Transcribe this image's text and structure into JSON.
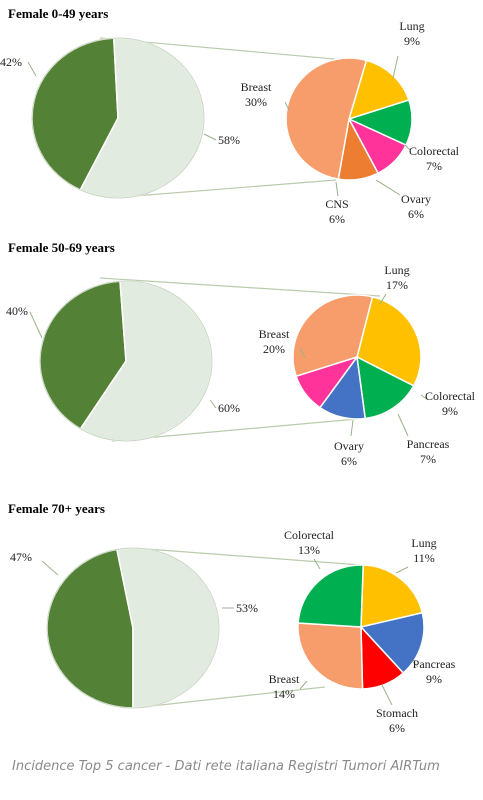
{
  "chart_data": [
    {
      "type": "pie",
      "title": "Female 0-49 years",
      "main_pie": {
        "slices": [
          {
            "label": "42%",
            "value": 42,
            "color": "#538135"
          },
          {
            "label": "58%",
            "value": 58,
            "color": "#e2ebe0"
          }
        ]
      },
      "detail_pie": {
        "slices": [
          {
            "name": "Lung",
            "value": 9,
            "label": "9%",
            "color": "#ffc000"
          },
          {
            "name": "Colorectal",
            "value": 7,
            "label": "7%",
            "color": "#00b050"
          },
          {
            "name": "Ovary",
            "value": 6,
            "label": "6%",
            "color": "#ff3399"
          },
          {
            "name": "CNS",
            "value": 6,
            "label": "6%",
            "color": "#ed7d31"
          },
          {
            "name": "Breast",
            "value": 30,
            "label": "30%",
            "color": "#f79c6b"
          }
        ]
      }
    },
    {
      "type": "pie",
      "title": "Female 50-69 years",
      "main_pie": {
        "slices": [
          {
            "label": "40%",
            "value": 40,
            "color": "#538135"
          },
          {
            "label": "60%",
            "value": 60,
            "color": "#e2ebe0"
          }
        ]
      },
      "detail_pie": {
        "slices": [
          {
            "name": "Lung",
            "value": 17,
            "label": "17%",
            "color": "#ffc000"
          },
          {
            "name": "Colorectal",
            "value": 9,
            "label": "9%",
            "color": "#00b050"
          },
          {
            "name": "Pancreas",
            "value": 7,
            "label": "7%",
            "color": "#4472c4"
          },
          {
            "name": "Ovary",
            "value": 6,
            "label": "6%",
            "color": "#ff3399"
          },
          {
            "name": "Breast",
            "value": 20,
            "label": "20%",
            "color": "#f79c6b"
          }
        ]
      }
    },
    {
      "type": "pie",
      "title": "Female 70+ years",
      "main_pie": {
        "slices": [
          {
            "label": "47%",
            "value": 47,
            "color": "#538135"
          },
          {
            "label": "53%",
            "value": 53,
            "color": "#e2ebe0"
          }
        ]
      },
      "detail_pie": {
        "slices": [
          {
            "name": "Lung",
            "value": 11,
            "label": "11%",
            "color": "#ffc000"
          },
          {
            "name": "Pancreas",
            "value": 9,
            "label": "9%",
            "color": "#4472c4"
          },
          {
            "name": "Stomach",
            "value": 6,
            "label": "6%",
            "color": "#ff0000"
          },
          {
            "name": "Breast",
            "value": 14,
            "label": "14%",
            "color": "#f79c6b"
          },
          {
            "name": "Colorectal",
            "value": 13,
            "label": "13%",
            "color": "#00b050"
          }
        ]
      }
    }
  ],
  "caption": "Incidence Top 5 cancer - Dati rete italiana Registri Tumori AIRTum"
}
